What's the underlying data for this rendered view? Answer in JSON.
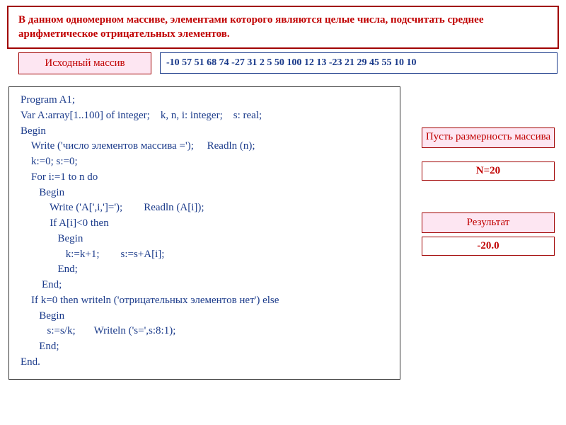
{
  "colors": {
    "red_text": "#c00000",
    "red_border": "#a00000",
    "blue_text": "#1a3a8a",
    "pink_bg": "#fde6f2",
    "white_bg": "#ffffff",
    "code_border": "#333333"
  },
  "task": "В данном одномерном массиве, элементами которого являются целые числа, подсчитать среднее арифметическое отрицательных элементов.",
  "source": {
    "label": "Исходный массив",
    "data": "-10  57  51  68  74  -27  31  2  5  50  100  12  13  -23 21  29  45  55 10 10"
  },
  "code": "Program A1;\nVar A:array[1..100] of integer;    k, n, i: integer;    s: real;\nBegin\n    Write ('число элементов массива =');     Readln (n);\n    k:=0; s:=0;\n    For i:=1 to n do\n       Begin\n           Write ('A[',i,']=');        Readln (A[i]);\n           If A[i]<0 then\n              Begin\n                 k:=k+1;        s:=s+A[i];\n              End;\n        End;\n    If k=0 then writeln ('отрицательных элементов нет') else\n       Begin\n          s:=s/k;       Writeln ('s=',s:8:1);\n       End;\nEnd.",
  "dimension": {
    "label": "Пусть размерность массива",
    "value": "N=20"
  },
  "result": {
    "label": "Результат",
    "value": "-20.0"
  }
}
